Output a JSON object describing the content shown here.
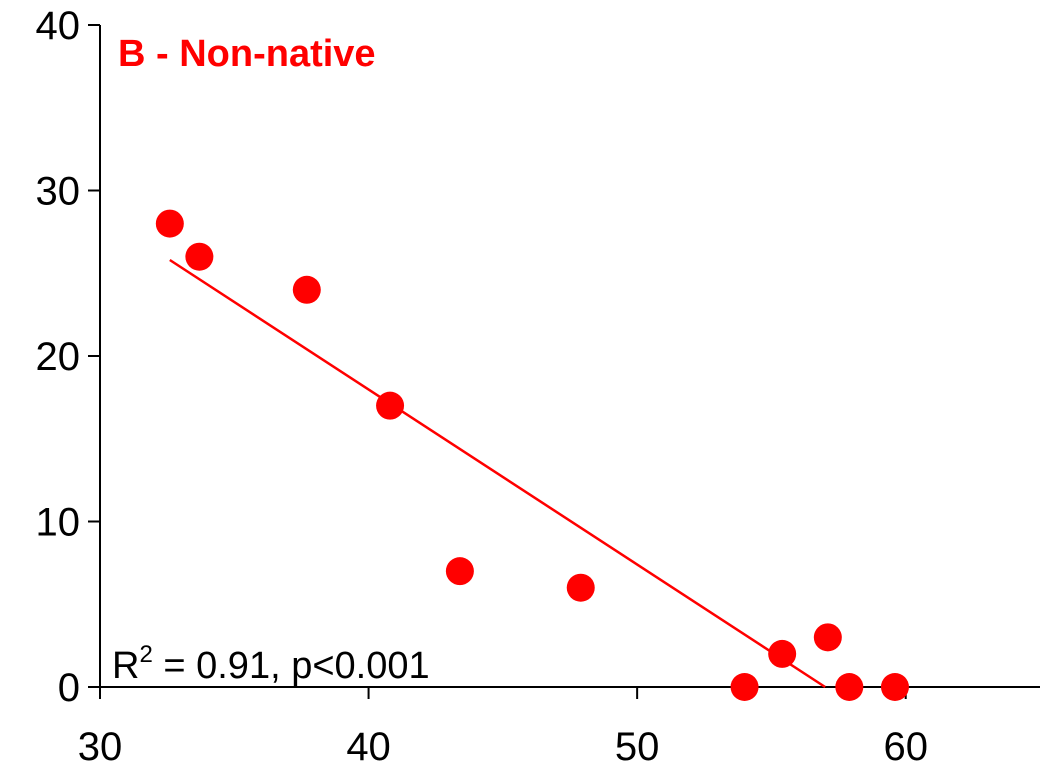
{
  "chart_data": {
    "type": "scatter",
    "title": "B - Non-native",
    "xlabel": "",
    "ylabel": "",
    "xlim": [
      30,
      65
    ],
    "ylim": [
      0,
      40
    ],
    "x_ticks": [
      30,
      40,
      50,
      60
    ],
    "y_ticks": [
      0,
      10,
      20,
      30,
      40
    ],
    "grid": false,
    "series": [
      {
        "points": [
          {
            "x": 32.6,
            "y": 28
          },
          {
            "x": 33.7,
            "y": 26
          },
          {
            "x": 37.7,
            "y": 24
          },
          {
            "x": 40.8,
            "y": 17
          },
          {
            "x": 43.4,
            "y": 7
          },
          {
            "x": 47.9,
            "y": 6
          },
          {
            "x": 54.0,
            "y": 0
          },
          {
            "x": 55.4,
            "y": 2
          },
          {
            "x": 57.1,
            "y": 3
          },
          {
            "x": 57.9,
            "y": 0
          },
          {
            "x": 59.6,
            "y": 0
          }
        ]
      }
    ],
    "trendline": {
      "x_start": 32.6,
      "y_start": 25.8,
      "x_end": 57.0,
      "y_end": 0
    },
    "annotation": {
      "r_label": "R",
      "r_exponent": "2",
      "text": " = 0.91, p<0.001"
    },
    "colors": {
      "points": "#ff0000",
      "trendline": "#ff0000",
      "title": "#ff0000",
      "axes": "#000000"
    }
  }
}
